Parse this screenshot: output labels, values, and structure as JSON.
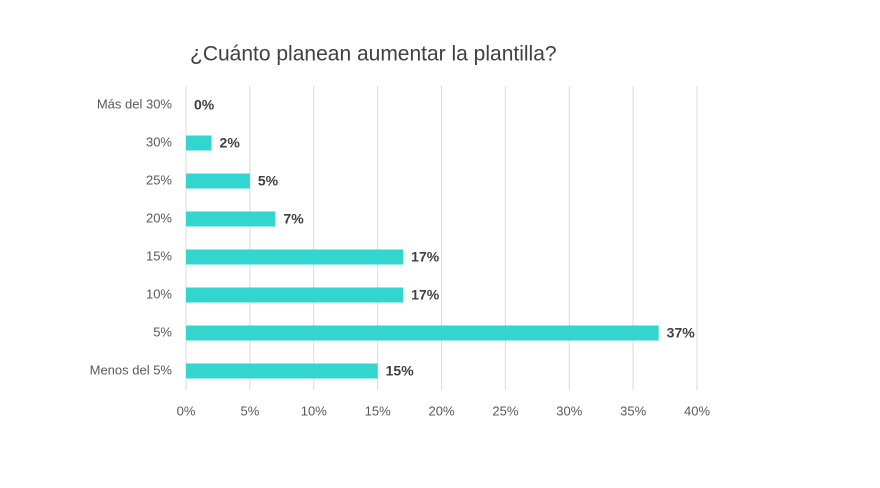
{
  "chart_data": {
    "type": "bar",
    "orientation": "horizontal",
    "title": "¿Cuánto planean aumentar la plantilla?",
    "categories": [
      "Más del 30%",
      "30%",
      "25%",
      "20%",
      "15%",
      "10%",
      "5%",
      "Menos del 5%"
    ],
    "values": [
      0,
      2,
      5,
      7,
      17,
      17,
      37,
      15
    ],
    "value_labels": [
      "0%",
      "2%",
      "5%",
      "7%",
      "17%",
      "17%",
      "37%",
      "15%"
    ],
    "color": "#33d6cf",
    "xlim": [
      0,
      40
    ],
    "xticks": [
      {
        "value": 0,
        "label": "0%"
      },
      {
        "value": 5,
        "label": "5%"
      },
      {
        "value": 10,
        "label": "10%"
      },
      {
        "value": 15,
        "label": "15%"
      },
      {
        "value": 20,
        "label": "20%"
      },
      {
        "value": 25,
        "label": "25%"
      },
      {
        "value": 30,
        "label": "30%"
      },
      {
        "value": 35,
        "label": "35%"
      },
      {
        "value": 40,
        "label": "40%"
      }
    ],
    "grid": true
  }
}
